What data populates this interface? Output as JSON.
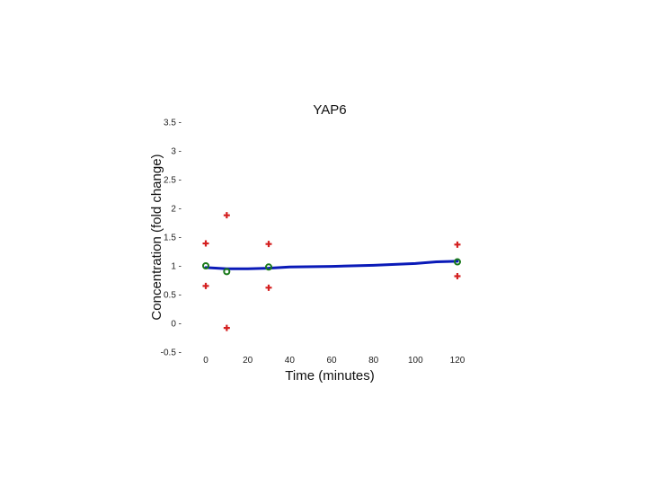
{
  "chart_data": {
    "type": "scatter",
    "title": "YAP6",
    "xlabel": "Time (minutes)",
    "ylabel": "Concentration (fold change)",
    "xlim": [
      0,
      120
    ],
    "ylim": [
      -0.5,
      3.5
    ],
    "xticks": [
      0,
      20,
      40,
      60,
      80,
      100,
      120
    ],
    "xtick_labels": [
      "0",
      "20",
      "40",
      "60",
      "80",
      "100",
      "120"
    ],
    "yticks": [
      -0.5,
      0,
      0.5,
      1,
      1.5,
      2,
      2.5,
      3,
      3.5
    ],
    "ytick_labels": [
      "-0.5",
      "0",
      "0.5",
      "1",
      "1.5",
      "2",
      "2.5",
      "3",
      "3.5"
    ],
    "grid": false,
    "legend": "none",
    "series": [
      {
        "marker": "plus",
        "color": "#d42020",
        "points": [
          {
            "x": 0,
            "y": 1.39
          },
          {
            "x": 0,
            "y": 0.65
          },
          {
            "x": 10,
            "y": 1.88
          },
          {
            "x": 10,
            "y": -0.08
          },
          {
            "x": 30,
            "y": 1.38
          },
          {
            "x": 30,
            "y": 0.62
          },
          {
            "x": 120,
            "y": 1.37
          },
          {
            "x": 120,
            "y": 0.82
          }
        ]
      },
      {
        "marker": "circle",
        "color": "#1a7a1a",
        "points": [
          {
            "x": 0,
            "y": 1.0
          },
          {
            "x": 10,
            "y": 0.9
          },
          {
            "x": 30,
            "y": 0.98
          },
          {
            "x": 120,
            "y": 1.07
          }
        ]
      },
      {
        "marker": "line",
        "color": "#0a1ab8",
        "points": [
          {
            "x": 0,
            "y": 0.97
          },
          {
            "x": 10,
            "y": 0.95
          },
          {
            "x": 20,
            "y": 0.95
          },
          {
            "x": 30,
            "y": 0.96
          },
          {
            "x": 40,
            "y": 0.98
          },
          {
            "x": 60,
            "y": 0.99
          },
          {
            "x": 80,
            "y": 1.01
          },
          {
            "x": 100,
            "y": 1.04
          },
          {
            "x": 110,
            "y": 1.07
          },
          {
            "x": 120,
            "y": 1.08
          }
        ]
      }
    ]
  }
}
